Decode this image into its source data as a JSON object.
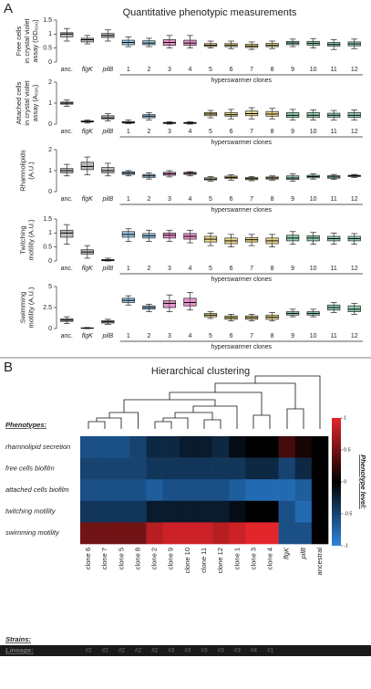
{
  "panels": {
    "a_label": "A",
    "a_title": "Quantitative phenotypic measurements",
    "b_label": "B"
  },
  "chart_data": [
    {
      "type": "box",
      "ylabel": [
        "Free cells",
        "in crystal violet",
        "assay (OD₆₀₀)"
      ],
      "categories": [
        "anc.",
        "flgK",
        "pilB",
        "1",
        "2",
        "3",
        "4",
        "5",
        "6",
        "7",
        "8",
        "9",
        "10",
        "11",
        "12"
      ],
      "group_label": "hyperswarmer clones",
      "colors": [
        "#888888",
        "#888888",
        "#888888",
        "#4fa3d9",
        "#4fa3d9",
        "#d63fa0",
        "#d63fa0",
        "#e0c030",
        "#e0c030",
        "#e0c030",
        "#e0c030",
        "#3fb07a",
        "#3fb07a",
        "#3fb07a",
        "#3fb07a"
      ],
      "boxes": [
        [
          0.75,
          0.9,
          1.0,
          1.05,
          1.2
        ],
        [
          0.65,
          0.72,
          0.8,
          0.85,
          0.95
        ],
        [
          0.75,
          0.88,
          0.95,
          1.02,
          1.15
        ],
        [
          0.55,
          0.62,
          0.7,
          0.78,
          0.9
        ],
        [
          0.55,
          0.62,
          0.68,
          0.76,
          0.85
        ],
        [
          0.5,
          0.6,
          0.7,
          0.8,
          0.95
        ],
        [
          0.5,
          0.6,
          0.68,
          0.78,
          0.95
        ],
        [
          0.5,
          0.56,
          0.6,
          0.66,
          0.75
        ],
        [
          0.48,
          0.55,
          0.6,
          0.66,
          0.75
        ],
        [
          0.45,
          0.52,
          0.57,
          0.64,
          0.72
        ],
        [
          0.48,
          0.55,
          0.6,
          0.67,
          0.75
        ],
        [
          0.55,
          0.62,
          0.68,
          0.74,
          0.82
        ],
        [
          0.5,
          0.6,
          0.67,
          0.74,
          0.84
        ],
        [
          0.45,
          0.57,
          0.63,
          0.7,
          0.8
        ],
        [
          0.48,
          0.58,
          0.65,
          0.72,
          0.82
        ]
      ],
      "ylim": [
        0,
        1.5
      ],
      "yticks": [
        0,
        0.5,
        1,
        1.5
      ]
    },
    {
      "type": "box",
      "ylabel": [
        "Attached cells",
        "in crystal violet",
        "assay (A₅₉₅)"
      ],
      "categories": [
        "anc.",
        "flgK",
        "pilB",
        "1",
        "2",
        "3",
        "4",
        "5",
        "6",
        "7",
        "8",
        "9",
        "10",
        "11",
        "12"
      ],
      "group_label": "hyperswarmer clones",
      "colors": [
        "#888888",
        "#888888",
        "#888888",
        "#4fa3d9",
        "#4fa3d9",
        "#d63fa0",
        "#d63fa0",
        "#e0c030",
        "#e0c030",
        "#e0c030",
        "#e0c030",
        "#3fb07a",
        "#3fb07a",
        "#3fb07a",
        "#3fb07a"
      ],
      "boxes": [
        [
          0.85,
          0.95,
          1.0,
          1.05,
          1.15
        ],
        [
          0.05,
          0.1,
          0.12,
          0.15,
          0.2
        ],
        [
          0.15,
          0.25,
          0.3,
          0.4,
          0.5
        ],
        [
          0.02,
          0.05,
          0.08,
          0.12,
          0.2
        ],
        [
          0.2,
          0.3,
          0.38,
          0.45,
          0.55
        ],
        [
          0,
          0.03,
          0.05,
          0.08,
          0.12
        ],
        [
          0,
          0.03,
          0.05,
          0.08,
          0.12
        ],
        [
          0.3,
          0.4,
          0.48,
          0.55,
          0.65
        ],
        [
          0.25,
          0.38,
          0.45,
          0.55,
          0.7
        ],
        [
          0.25,
          0.4,
          0.5,
          0.62,
          0.78
        ],
        [
          0.25,
          0.38,
          0.48,
          0.6,
          0.75
        ],
        [
          0.2,
          0.32,
          0.42,
          0.55,
          0.7
        ],
        [
          0.2,
          0.32,
          0.42,
          0.55,
          0.68
        ],
        [
          0.2,
          0.33,
          0.42,
          0.52,
          0.65
        ],
        [
          0.2,
          0.32,
          0.42,
          0.55,
          0.68
        ]
      ],
      "ylim": [
        0,
        2
      ],
      "yticks": [
        0,
        1,
        2
      ]
    },
    {
      "type": "box",
      "ylabel": [
        "Rhamnolipids",
        "(A.U.)"
      ],
      "categories": [
        "anc.",
        "flgK",
        "pilB",
        "1",
        "2",
        "3",
        "4",
        "5",
        "6",
        "7",
        "8",
        "9",
        "10",
        "11",
        "12"
      ],
      "group_label": "hyperswarmer clones",
      "colors": [
        "#888888",
        "#888888",
        "#888888",
        "#4fa3d9",
        "#4fa3d9",
        "#d63fa0",
        "#d63fa0",
        "#e0c030",
        "#e0c030",
        "#e0c030",
        "#e0c030",
        "#3fb07a",
        "#3fb07a",
        "#3fb07a",
        "#3fb07a"
      ],
      "boxes": [
        [
          0.75,
          0.9,
          1.0,
          1.1,
          1.3
        ],
        [
          0.8,
          1.05,
          1.2,
          1.4,
          1.65
        ],
        [
          0.75,
          0.9,
          1.0,
          1.15,
          1.35
        ],
        [
          0.75,
          0.82,
          0.88,
          0.95,
          1.0
        ],
        [
          0.6,
          0.68,
          0.75,
          0.82,
          0.9
        ],
        [
          0.7,
          0.78,
          0.85,
          0.92,
          1.0
        ],
        [
          0.75,
          0.82,
          0.87,
          0.92,
          0.95
        ],
        [
          0.5,
          0.56,
          0.6,
          0.66,
          0.72
        ],
        [
          0.55,
          0.62,
          0.68,
          0.74,
          0.8
        ],
        [
          0.52,
          0.57,
          0.62,
          0.67,
          0.72
        ],
        [
          0.55,
          0.6,
          0.65,
          0.7,
          0.75
        ],
        [
          0.5,
          0.58,
          0.65,
          0.75,
          0.85
        ],
        [
          0.6,
          0.66,
          0.72,
          0.78,
          0.85
        ],
        [
          0.58,
          0.64,
          0.7,
          0.76,
          0.82
        ],
        [
          0.68,
          0.72,
          0.75,
          0.78,
          0.82
        ]
      ],
      "ylim": [
        0,
        2
      ],
      "yticks": [
        0,
        1,
        2
      ]
    },
    {
      "type": "box",
      "ylabel": [
        "Twitching",
        "motility (A.U.)"
      ],
      "categories": [
        "anc.",
        "flgK",
        "pilB",
        "1",
        "2",
        "3",
        "4",
        "5",
        "6",
        "7",
        "8",
        "9",
        "10",
        "11",
        "12"
      ],
      "group_label": "hyperswarmer clones",
      "colors": [
        "#888888",
        "#888888",
        "#888888",
        "#4fa3d9",
        "#4fa3d9",
        "#d63fa0",
        "#d63fa0",
        "#e0c030",
        "#e0c030",
        "#e0c030",
        "#e0c030",
        "#3fb07a",
        "#3fb07a",
        "#3fb07a",
        "#3fb07a"
      ],
      "boxes": [
        [
          0.6,
          0.85,
          1.0,
          1.1,
          1.3
        ],
        [
          0.1,
          0.25,
          0.32,
          0.4,
          0.55
        ],
        [
          0,
          0.01,
          0.03,
          0.05,
          0.1
        ],
        [
          0.7,
          0.85,
          0.95,
          1.05,
          1.15
        ],
        [
          0.7,
          0.82,
          0.9,
          0.98,
          1.1
        ],
        [
          0.7,
          0.82,
          0.92,
          1.0,
          1.1
        ],
        [
          0.65,
          0.78,
          0.88,
          0.98,
          1.1
        ],
        [
          0.55,
          0.68,
          0.78,
          0.88,
          1.0
        ],
        [
          0.5,
          0.62,
          0.72,
          0.82,
          0.95
        ],
        [
          0.55,
          0.68,
          0.76,
          0.84,
          0.95
        ],
        [
          0.5,
          0.62,
          0.72,
          0.82,
          0.95
        ],
        [
          0.6,
          0.72,
          0.82,
          0.92,
          1.05
        ],
        [
          0.6,
          0.72,
          0.82,
          0.9,
          1.02
        ],
        [
          0.6,
          0.72,
          0.8,
          0.88,
          1.0
        ],
        [
          0.6,
          0.72,
          0.8,
          0.88,
          0.98
        ]
      ],
      "ylim": [
        0,
        1.5
      ],
      "yticks": [
        0,
        0.5,
        1,
        1.5
      ]
    },
    {
      "type": "box",
      "ylabel": [
        "Swimming",
        "motility (A.U.)"
      ],
      "categories": [
        "anc.",
        "flgK",
        "pilB",
        "1",
        "2",
        "3",
        "4",
        "5",
        "6",
        "7",
        "8",
        "9",
        "10",
        "11",
        "12"
      ],
      "group_label": "hyperswarmer clones",
      "colors": [
        "#888888",
        "#888888",
        "#888888",
        "#4fa3d9",
        "#4fa3d9",
        "#d63fa0",
        "#d63fa0",
        "#e0c030",
        "#e0c030",
        "#e0c030",
        "#e0c030",
        "#3fb07a",
        "#3fb07a",
        "#3fb07a",
        "#3fb07a"
      ],
      "boxes": [
        [
          0.6,
          0.85,
          1.0,
          1.15,
          1.4
        ],
        [
          0,
          0.02,
          0.05,
          0.08,
          0.12
        ],
        [
          0.5,
          0.65,
          0.8,
          0.95,
          1.1
        ],
        [
          2.8,
          3.1,
          3.35,
          3.6,
          3.9
        ],
        [
          2.0,
          2.3,
          2.5,
          2.7,
          2.9
        ],
        [
          2.0,
          2.5,
          3.0,
          3.3,
          4.0
        ],
        [
          2.2,
          2.7,
          3.1,
          3.6,
          4.3
        ],
        [
          1.2,
          1.4,
          1.6,
          1.8,
          2.0
        ],
        [
          0.9,
          1.1,
          1.3,
          1.5,
          1.7
        ],
        [
          0.9,
          1.1,
          1.3,
          1.5,
          1.7
        ],
        [
          0.9,
          1.1,
          1.35,
          1.6,
          1.9
        ],
        [
          1.4,
          1.6,
          1.8,
          2.0,
          2.3
        ],
        [
          1.4,
          1.6,
          1.8,
          2.0,
          2.3
        ],
        [
          1.9,
          2.2,
          2.5,
          2.8,
          3.1
        ],
        [
          1.7,
          2.0,
          2.3,
          2.7,
          3.0
        ]
      ],
      "ylim": [
        0,
        5
      ],
      "yticks": [
        0,
        2.5,
        5
      ]
    },
    {
      "type": "heatmap",
      "title": "Hierarchical clustering",
      "rows_header": "Phenotypes:",
      "columns_header": "Strains:",
      "lineage_header": "Lineage:",
      "rows": [
        "rhamnolipid secretion",
        "free cells biofilm",
        "attached cells biofilm",
        "twitching motility",
        "swimming motility"
      ],
      "columns": [
        "clone 6",
        "clone 7",
        "clone 5",
        "clone 8",
        "clone 2",
        "clone 9",
        "clone 10",
        "clone 11",
        "clone 12",
        "clone 1",
        "clone 3",
        "clone 4",
        "flgK",
        "pilB",
        "ancestral"
      ],
      "column_colors": [
        "#e0c030",
        "#e0c030",
        "#e0c030",
        "#e0c030",
        "#4fa3d9",
        "#3fb07a",
        "#3fb07a",
        "#3fb07a",
        "#3fb07a",
        "#4fa3d9",
        "#d63fa0",
        "#d63fa0",
        "#222222",
        "#222222",
        "#222222"
      ],
      "lineages": [
        "#2",
        "#2",
        "#2",
        "#2",
        "#2",
        "#3",
        "#3",
        "#3",
        "#3",
        "#3",
        "#4",
        "#1"
      ],
      "values": [
        [
          -0.6,
          -0.6,
          -0.6,
          -0.5,
          -0.3,
          -0.3,
          -0.2,
          -0.2,
          -0.3,
          -0.1,
          0,
          0,
          0.3,
          0.1,
          0
        ],
        [
          -0.5,
          -0.5,
          -0.5,
          -0.5,
          -0.4,
          -0.4,
          -0.4,
          -0.4,
          -0.4,
          -0.4,
          -0.3,
          -0.3,
          -0.5,
          -0.3,
          0
        ],
        [
          -0.6,
          -0.6,
          -0.6,
          -0.6,
          -0.7,
          -0.6,
          -0.6,
          -0.6,
          -0.6,
          -0.7,
          -0.8,
          -0.8,
          -0.8,
          -0.7,
          0
        ],
        [
          -0.4,
          -0.4,
          -0.4,
          -0.4,
          -0.2,
          -0.2,
          -0.2,
          -0.2,
          -0.2,
          -0.1,
          0,
          0,
          -0.6,
          -0.8,
          0
        ],
        [
          0.5,
          0.5,
          0.5,
          0.5,
          0.8,
          0.9,
          0.9,
          0.9,
          0.8,
          0.9,
          1,
          1,
          -0.6,
          -0.6,
          0
        ]
      ],
      "colorbar_label": "Phenotype level:",
      "clim": [
        -1,
        1
      ],
      "cticks": [
        -1,
        -0.5,
        0,
        0.5,
        1
      ],
      "low_color": "#2b86e0",
      "mid_color": "#000000",
      "high_color": "#e3262b"
    }
  ]
}
